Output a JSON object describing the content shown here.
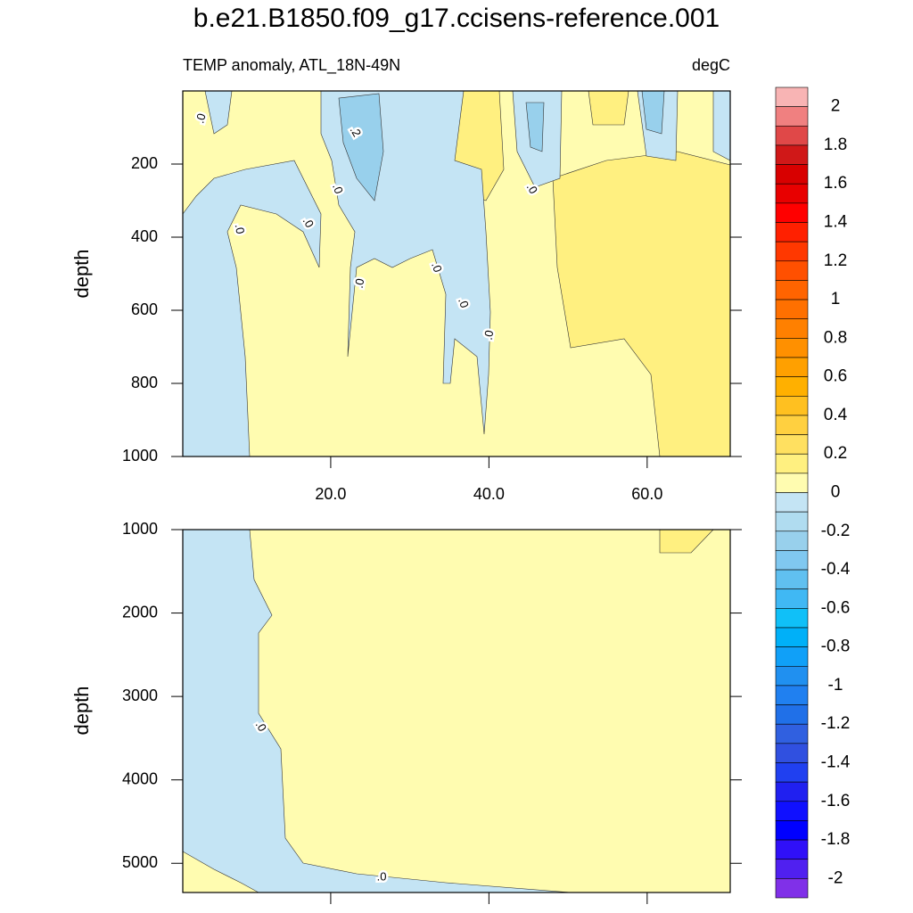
{
  "title": "b.e21.B1850.f09_g17.ccisens-reference.001",
  "chart_data": [
    {
      "type": "contour",
      "subtitle": "TEMP anomaly, ATL_18N-49N",
      "units": "degC",
      "ylabel": "depth",
      "xlim": [
        1.3,
        70.5
      ],
      "xticks": [
        {
          "value": 20,
          "label": "20.0"
        },
        {
          "value": 40,
          "label": "40.0"
        },
        {
          "value": 60,
          "label": "60.0"
        }
      ],
      "ylim": [
        0,
        1000
      ],
      "yticks": [
        200,
        400,
        600,
        800,
        1000
      ],
      "contour_labels": [
        ".0",
        ".2",
        ".0",
        ".0",
        ".0",
        ".0",
        ".0",
        ".0",
        ".0",
        ".0"
      ]
    },
    {
      "type": "contour",
      "ylabel": "depth",
      "xlim": [
        1.3,
        70.5
      ],
      "ylim": [
        1000,
        5350
      ],
      "yticks": [
        1000,
        2000,
        3000,
        4000,
        5000
      ],
      "contour_labels": [
        ".0",
        ".0"
      ]
    }
  ],
  "colorbar": {
    "lim": [
      -2.1,
      2.1
    ],
    "ticks": [
      2,
      1.8,
      1.6,
      1.4,
      1.2,
      1,
      0.8,
      0.6,
      0.4,
      0.2,
      0,
      -0.2,
      -0.4,
      -0.6,
      -0.8,
      -1,
      -1.2,
      -1.4,
      -1.6,
      -1.8,
      -2
    ],
    "colors": [
      "#f8b4b4",
      "#f08080",
      "#e04848",
      "#d01818",
      "#d80000",
      "#e80000",
      "#ff0000",
      "#ff2000",
      "#ff3800",
      "#ff5000",
      "#ff6400",
      "#ff7000",
      "#ff8000",
      "#ff9000",
      "#ffa000",
      "#ffb000",
      "#ffc020",
      "#ffd040",
      "#ffe060",
      "#fff080",
      "#fffcb0",
      "#c4e4f4",
      "#b0dcf0",
      "#98d0ec",
      "#80c8f0",
      "#60c0f0",
      "#40b8f4",
      "#10c0f8",
      "#00b0f8",
      "#10a0f8",
      "#2090f0",
      "#2080f0",
      "#2070e8",
      "#3060e0",
      "#3050e0",
      "#2040f0",
      "#2020f0",
      "#1010ff",
      "#0000ff",
      "#3010f8",
      "#5020f0",
      "#8030e8"
    ]
  }
}
